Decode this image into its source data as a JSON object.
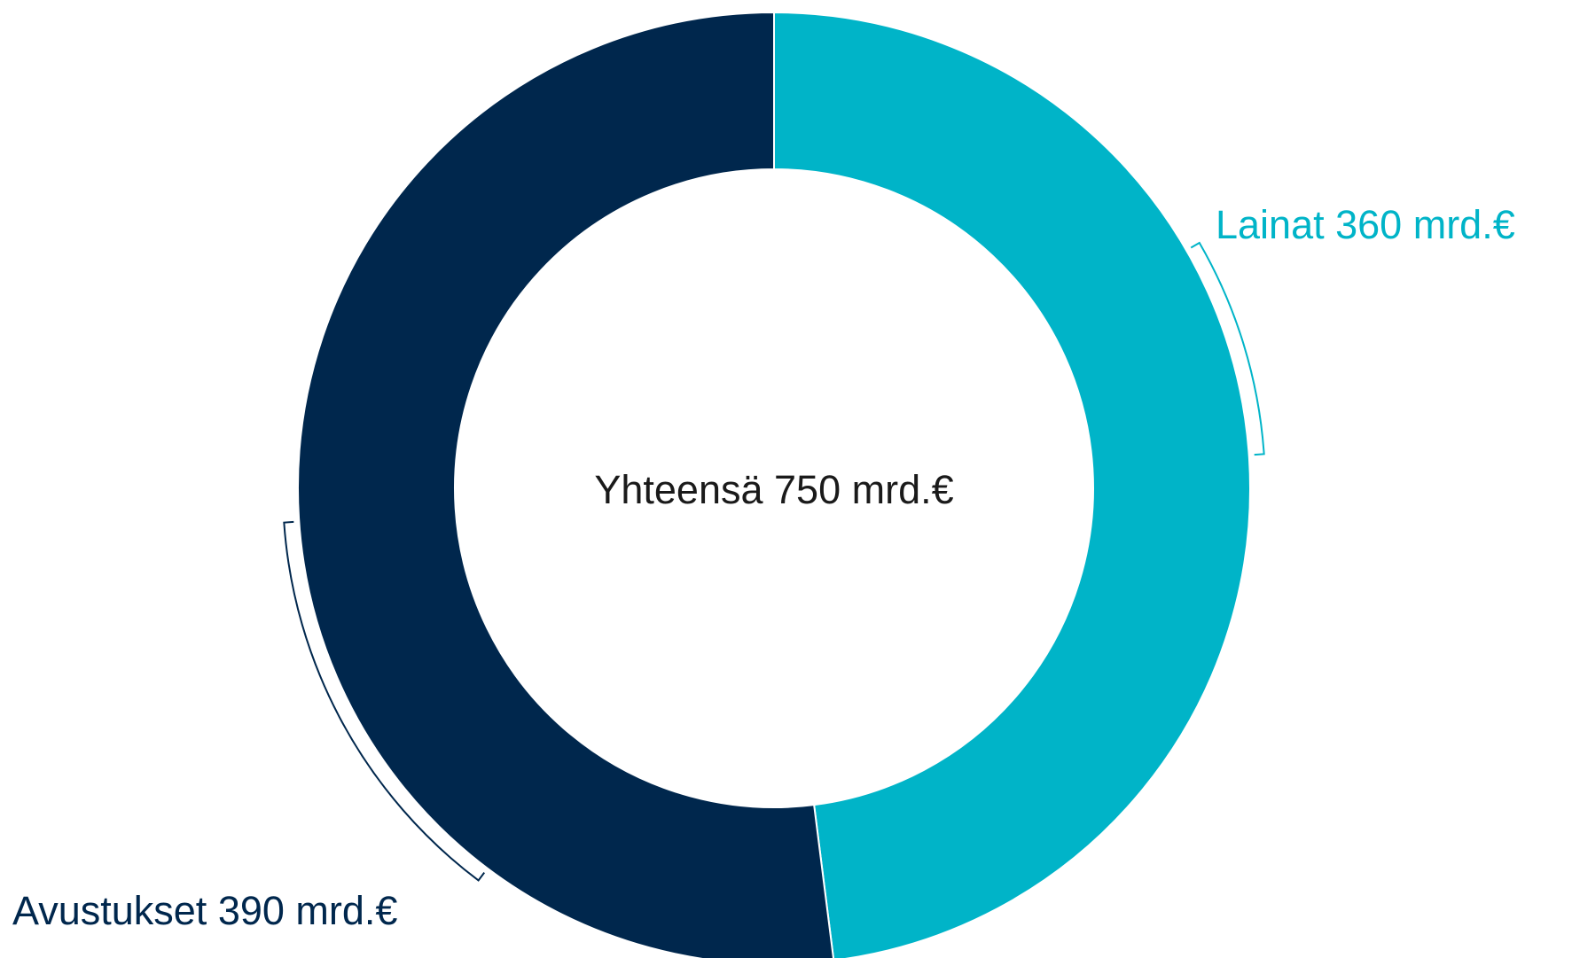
{
  "chart_data": {
    "type": "donut",
    "center_label": "Yhteensä 750 mrd.€",
    "categories": [
      "Lainat",
      "Avustukset"
    ],
    "values": [
      360,
      390
    ],
    "value_labels": [
      "360 mrd.€",
      "390 mrd.€"
    ],
    "colors": [
      "#00b4c8",
      "#00274d"
    ]
  }
}
